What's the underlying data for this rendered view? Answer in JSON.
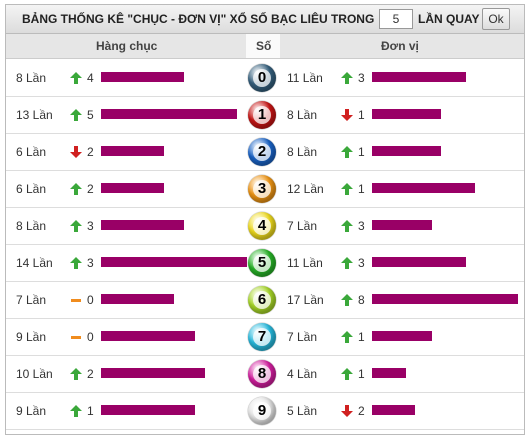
{
  "header": {
    "title": "BẢNG THỐNG KÊ \"CHỤC - ĐƠN VỊ\" XỔ SỐ BẠC LIÊU TRONG",
    "input_value": 5,
    "suffix": "LẦN QUAY",
    "button": "Ok"
  },
  "columns": [
    "Hàng chục",
    "Số",
    "Đơn vị"
  ],
  "bar_color": "#990066",
  "rows": [
    {
      "digit": "0",
      "ball_color": "#35607e",
      "tens": {
        "count": 8,
        "label": "8 Lần",
        "trend": "up",
        "change": 4
      },
      "units": {
        "count": 11,
        "label": "11 Lần",
        "trend": "up",
        "change": 3
      }
    },
    {
      "digit": "1",
      "ball_color": "#c81414",
      "tens": {
        "count": 13,
        "label": "13 Lần",
        "trend": "up",
        "change": 5
      },
      "units": {
        "count": 8,
        "label": "8 Lần",
        "trend": "down",
        "change": 1
      }
    },
    {
      "digit": "2",
      "ball_color": "#1a64c8",
      "tens": {
        "count": 6,
        "label": "6 Lần",
        "trend": "down",
        "change": 2
      },
      "units": {
        "count": 8,
        "label": "8 Lần",
        "trend": "up",
        "change": 1
      }
    },
    {
      "digit": "3",
      "ball_color": "#f09614",
      "tens": {
        "count": 6,
        "label": "6 Lần",
        "trend": "up",
        "change": 2
      },
      "units": {
        "count": 12,
        "label": "12 Lần",
        "trend": "up",
        "change": 1
      }
    },
    {
      "digit": "4",
      "ball_color": "#f0dc1e",
      "tens": {
        "count": 8,
        "label": "8 Lần",
        "trend": "up",
        "change": 3
      },
      "units": {
        "count": 7,
        "label": "7 Lần",
        "trend": "up",
        "change": 3
      }
    },
    {
      "digit": "5",
      "ball_color": "#28b428",
      "tens": {
        "count": 14,
        "label": "14 Lần",
        "trend": "up",
        "change": 3
      },
      "units": {
        "count": 11,
        "label": "11 Lần",
        "trend": "up",
        "change": 3
      }
    },
    {
      "digit": "6",
      "ball_color": "#a8d828",
      "tens": {
        "count": 7,
        "label": "7 Lần",
        "trend": "flat",
        "change": 0
      },
      "units": {
        "count": 17,
        "label": "17 Lần",
        "trend": "up",
        "change": 8
      }
    },
    {
      "digit": "7",
      "ball_color": "#28bce0",
      "tens": {
        "count": 9,
        "label": "9 Lần",
        "trend": "flat",
        "change": 0
      },
      "units": {
        "count": 7,
        "label": "7 Lần",
        "trend": "up",
        "change": 1
      }
    },
    {
      "digit": "8",
      "ball_color": "#d41ea0",
      "tens": {
        "count": 10,
        "label": "10 Lần",
        "trend": "up",
        "change": 2
      },
      "units": {
        "count": 4,
        "label": "4 Lần",
        "trend": "up",
        "change": 1
      }
    },
    {
      "digit": "9",
      "ball_color": "#e8e8e8",
      "tens": {
        "count": 9,
        "label": "9 Lần",
        "trend": "up",
        "change": 1
      },
      "units": {
        "count": 5,
        "label": "5 Lần",
        "trend": "down",
        "change": 2
      }
    }
  ]
}
